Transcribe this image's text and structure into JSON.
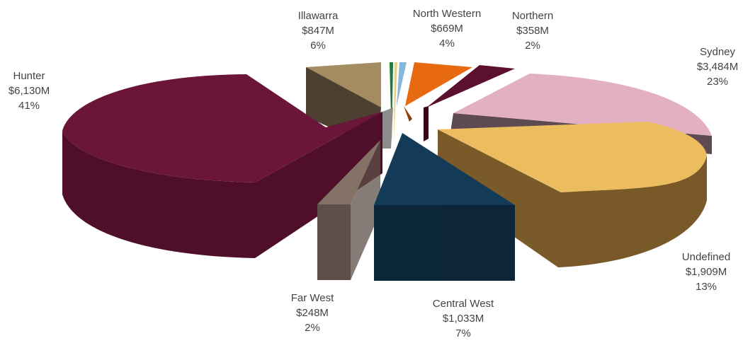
{
  "chart_data": {
    "type": "pie",
    "style": "3d-exploded",
    "title": "",
    "slices": [
      {
        "name": "Illawarra",
        "value_label": "$847M",
        "percent_label": "6%",
        "value": 847,
        "color": "#a38c62",
        "side": "#4d4030"
      },
      {
        "name": "North Western",
        "value_label": "$669M",
        "percent_label": "4%",
        "value": 669,
        "color": "#e86a10",
        "side": "#8a3c08"
      },
      {
        "name": "Northern",
        "value_label": "$358M",
        "percent_label": "2%",
        "value": 358,
        "color": "#5c1030",
        "side": "#350818"
      },
      {
        "name": "Sydney",
        "value_label": "$3,484M",
        "percent_label": "23%",
        "value": 3484,
        "color": "#e3afc3",
        "side": "#5e4a52"
      },
      {
        "name": "Undefined",
        "value_label": "$1,909M",
        "percent_label": "13%",
        "value": 1909,
        "color": "#ecbd5f",
        "side": "#7a5a28"
      },
      {
        "name": "Central West",
        "value_label": "$1,033M",
        "percent_label": "7%",
        "value": 1033,
        "color": "#133a57",
        "side": "#0c263a"
      },
      {
        "name": "Far West",
        "value_label": "$248M",
        "percent_label": "2%",
        "value": 248,
        "color": "#847266",
        "side": "#5e5049"
      },
      {
        "name": "Hunter",
        "value_label": "$6,130M",
        "percent_label": "41%",
        "value": 6130,
        "color": "#6b1538",
        "side": "#4f0f2a"
      }
    ],
    "minor_slices": [
      {
        "color": "#1e7a3a"
      },
      {
        "color": "#e8d07a"
      },
      {
        "color": "#86b8dc"
      },
      {
        "color": "#8c8c8c"
      }
    ]
  }
}
